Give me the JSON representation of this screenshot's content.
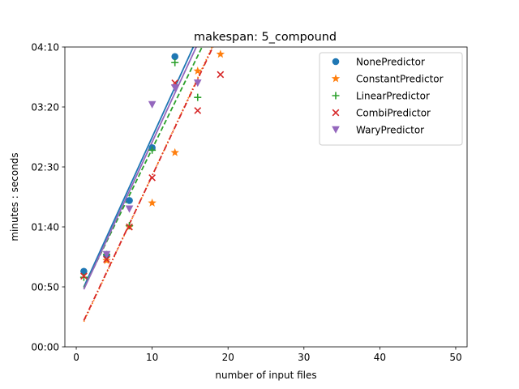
{
  "chart_data": {
    "type": "scatter",
    "title": "makespan: 5_compound",
    "xlabel": "number of input files",
    "ylabel": "minutes : seconds",
    "xlim": [
      -1.5,
      51.5
    ],
    "ylim": [
      0,
      250
    ],
    "x_ticks": [
      0,
      10,
      20,
      30,
      40,
      50
    ],
    "y_ticks": [
      {
        "value": 0,
        "label": "00:00"
      },
      {
        "value": 50,
        "label": "00:50"
      },
      {
        "value": 100,
        "label": "01:40"
      },
      {
        "value": 150,
        "label": "02:30"
      },
      {
        "value": 200,
        "label": "03:20"
      },
      {
        "value": 250,
        "label": "04:10"
      }
    ],
    "grid": false,
    "legend_position": "top-right",
    "series": [
      {
        "name": "NonePredictor",
        "marker": "circle",
        "color": "#1f77b4",
        "dash": "solid",
        "points": [
          [
            1,
            63
          ],
          [
            4,
            76
          ],
          [
            7,
            122
          ],
          [
            10,
            166
          ],
          [
            13,
            242
          ]
        ],
        "fit": [
          [
            1,
            50
          ],
          [
            16,
            258
          ]
        ]
      },
      {
        "name": "ConstantPredictor",
        "marker": "star",
        "color": "#ff7f0e",
        "dash": "dotted",
        "points": [
          [
            4,
            72
          ],
          [
            7,
            100
          ],
          [
            10,
            120
          ],
          [
            13,
            162
          ],
          [
            16,
            230
          ],
          [
            19,
            244
          ]
        ],
        "fit": [
          [
            1,
            21
          ],
          [
            18.5,
            258
          ]
        ]
      },
      {
        "name": "LinearPredictor",
        "marker": "plus",
        "color": "#2ca02c",
        "dash": "dashed",
        "points": [
          [
            1,
            58
          ],
          [
            4,
            77
          ],
          [
            7,
            101
          ],
          [
            10,
            164
          ],
          [
            13,
            237
          ],
          [
            16,
            208
          ]
        ],
        "fit": [
          [
            1,
            49
          ],
          [
            17.2,
            258
          ]
        ]
      },
      {
        "name": "CombiPredictor",
        "marker": "x",
        "color": "#d62728",
        "dash": "dashdot",
        "points": [
          [
            1,
            59
          ],
          [
            4,
            73
          ],
          [
            7,
            100
          ],
          [
            10,
            141
          ],
          [
            13,
            220
          ],
          [
            16,
            197
          ],
          [
            19,
            227
          ]
        ],
        "fit": [
          [
            1,
            22
          ],
          [
            18.6,
            258
          ]
        ]
      },
      {
        "name": "WaryPredictor",
        "marker": "triangle-down",
        "color": "#9467bd",
        "dash": "solid",
        "points": [
          [
            4,
            77
          ],
          [
            7,
            115
          ],
          [
            10,
            202
          ],
          [
            13,
            216
          ],
          [
            16,
            220
          ]
        ],
        "fit": [
          [
            1,
            48
          ],
          [
            16.4,
            258
          ]
        ]
      }
    ]
  }
}
